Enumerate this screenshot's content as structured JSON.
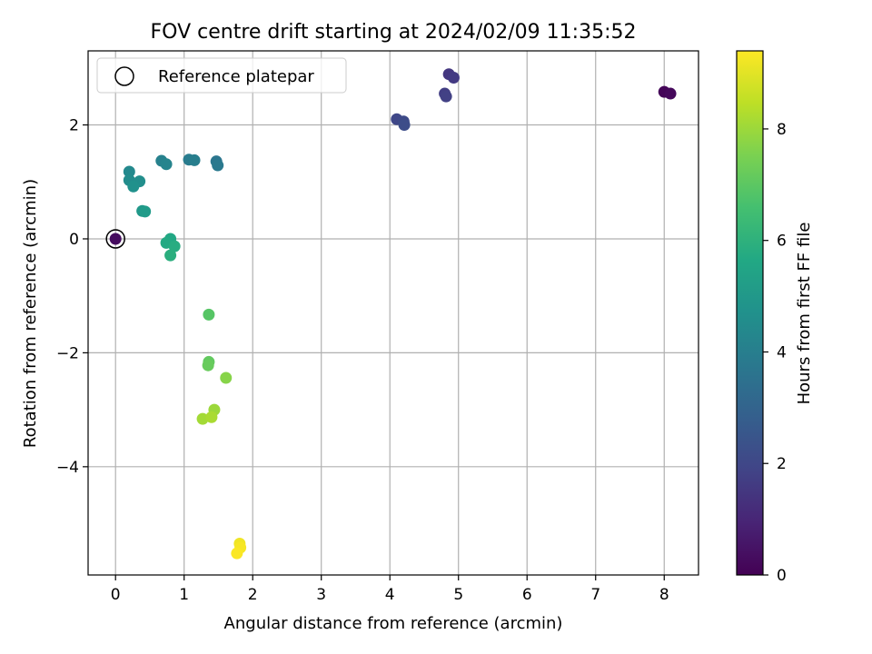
{
  "chart_data": {
    "type": "scatter",
    "title": "FOV centre drift starting at 2024/02/09 11:35:52",
    "xlabel": "Angular distance from reference (arcmin)",
    "ylabel": "Rotation from reference (arcmin)",
    "xlim": [
      -0.4,
      8.5
    ],
    "ylim": [
      -5.9,
      3.3
    ],
    "xticks": [
      0,
      1,
      2,
      3,
      4,
      5,
      6,
      7,
      8
    ],
    "yticks": [
      -4,
      -2,
      0,
      2
    ],
    "xtick_labels": [
      "0",
      "1",
      "2",
      "3",
      "4",
      "5",
      "6",
      "7",
      "8"
    ],
    "ytick_labels": [
      "−4",
      "−2",
      "0",
      "2"
    ],
    "grid": true,
    "legend": {
      "position": "top-left",
      "entries": [
        "Reference platepar"
      ]
    },
    "colorbar": {
      "label": "Hours from first FF file",
      "range": [
        0,
        9.4
      ],
      "colormap": "viridis",
      "ticks": [
        0,
        2,
        4,
        6,
        8
      ],
      "tick_labels": [
        "0",
        "2",
        "4",
        "6",
        "8"
      ]
    },
    "reference_point": {
      "x": 0,
      "y": 0
    },
    "points": [
      {
        "x": 8.0,
        "y": 2.58,
        "c": 0.1
      },
      {
        "x": 8.09,
        "y": 2.55,
        "c": 0.2
      },
      {
        "x": 0.0,
        "y": 0.0,
        "c": 0.3
      },
      {
        "x": 4.86,
        "y": 2.89,
        "c": 1.5
      },
      {
        "x": 4.93,
        "y": 2.83,
        "c": 1.6
      },
      {
        "x": 4.8,
        "y": 2.55,
        "c": 1.7
      },
      {
        "x": 4.82,
        "y": 2.5,
        "c": 1.8
      },
      {
        "x": 4.1,
        "y": 2.1,
        "c": 2.0
      },
      {
        "x": 4.2,
        "y": 2.06,
        "c": 2.1
      },
      {
        "x": 4.21,
        "y": 2.0,
        "c": 2.2
      },
      {
        "x": 1.47,
        "y": 1.36,
        "c": 3.7
      },
      {
        "x": 1.49,
        "y": 1.29,
        "c": 3.8
      },
      {
        "x": 1.07,
        "y": 1.39,
        "c": 3.9
      },
      {
        "x": 1.15,
        "y": 1.38,
        "c": 4.0
      },
      {
        "x": 0.67,
        "y": 1.37,
        "c": 4.1
      },
      {
        "x": 0.74,
        "y": 1.31,
        "c": 4.2
      },
      {
        "x": 0.2,
        "y": 1.18,
        "c": 4.4
      },
      {
        "x": 0.2,
        "y": 1.03,
        "c": 4.5
      },
      {
        "x": 0.35,
        "y": 1.01,
        "c": 4.6
      },
      {
        "x": 0.26,
        "y": 0.92,
        "c": 4.7
      },
      {
        "x": 0.39,
        "y": 0.49,
        "c": 5.0
      },
      {
        "x": 0.43,
        "y": 0.48,
        "c": 5.1
      },
      {
        "x": 0.8,
        "y": 0.0,
        "c": 5.6
      },
      {
        "x": 0.74,
        "y": -0.07,
        "c": 5.7
      },
      {
        "x": 0.86,
        "y": -0.13,
        "c": 5.8
      },
      {
        "x": 0.8,
        "y": -0.29,
        "c": 5.9
      },
      {
        "x": 1.36,
        "y": -1.33,
        "c": 6.9
      },
      {
        "x": 1.36,
        "y": -2.16,
        "c": 7.1
      },
      {
        "x": 1.35,
        "y": -2.22,
        "c": 7.2
      },
      {
        "x": 1.61,
        "y": -2.44,
        "c": 7.7
      },
      {
        "x": 1.44,
        "y": -3.0,
        "c": 8.0
      },
      {
        "x": 1.27,
        "y": -3.16,
        "c": 8.1
      },
      {
        "x": 1.4,
        "y": -3.13,
        "c": 8.2
      },
      {
        "x": 1.81,
        "y": -5.35,
        "c": 9.2
      },
      {
        "x": 1.82,
        "y": -5.42,
        "c": 9.3
      },
      {
        "x": 1.77,
        "y": -5.52,
        "c": 9.35
      }
    ]
  }
}
